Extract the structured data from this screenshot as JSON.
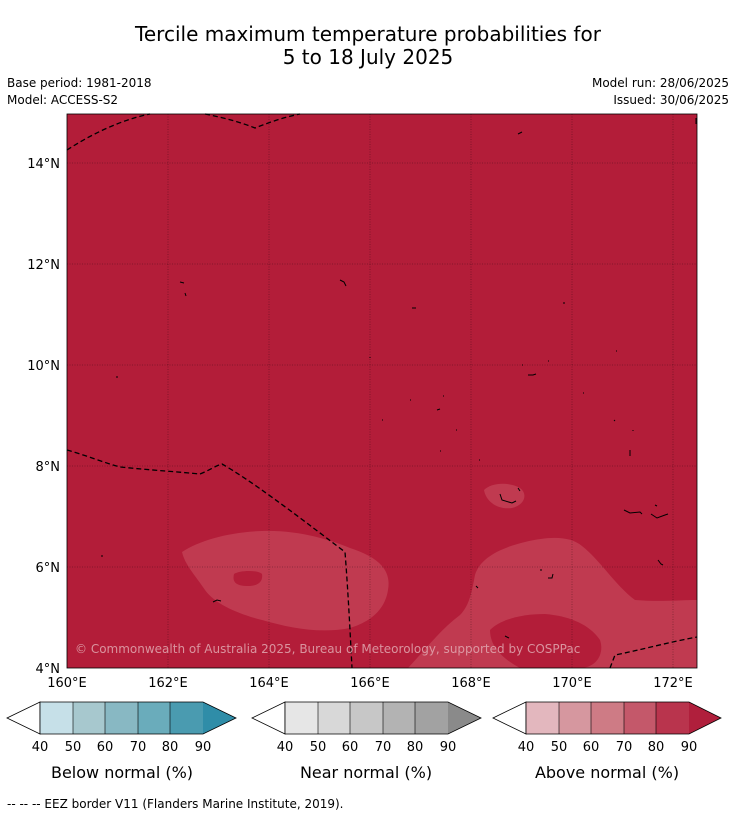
{
  "header": {
    "title_line1": "Tercile maximum temperature probabilities for",
    "title_line2": "5 to 18 July 2025",
    "base_period": "Base period: 1981-2018",
    "model": "Model: ACCESS-S2",
    "model_run": "Model run: 28/06/2025",
    "issued": "Issued: 30/06/2025"
  },
  "map": {
    "lat_labels": [
      "14°N",
      "12°N",
      "10°N",
      "8°N",
      "6°N",
      "4°N"
    ],
    "lon_labels": [
      "160°E",
      "162°E",
      "164°E",
      "166°E",
      "168°E",
      "170°E",
      "172°E"
    ],
    "copyright": "© Commonwealth of Australia 2025, Bureau of Meteorology, supported by COSPPac",
    "colors": {
      "above_90": "#b31d39",
      "above_80": "#c03a50"
    }
  },
  "colorbars": [
    {
      "label": "Below normal (%)",
      "ticks": [
        "40",
        "50",
        "60",
        "70",
        "80",
        "90"
      ],
      "colors": [
        "#c6e0e8",
        "#a7c8ce",
        "#88b8c3",
        "#6aacbb",
        "#4a9bb0",
        "#2f8da8"
      ]
    },
    {
      "label": "Near normal (%)",
      "ticks": [
        "40",
        "50",
        "60",
        "70",
        "80",
        "90"
      ],
      "colors": [
        "#e6e6e6",
        "#d8d8d8",
        "#c7c7c7",
        "#b3b3b3",
        "#a2a2a2",
        "#8a8a8a"
      ]
    },
    {
      "label": "Above normal (%)",
      "ticks": [
        "40",
        "50",
        "60",
        "70",
        "80",
        "90"
      ],
      "colors": [
        "#e3b7be",
        "#d6979f",
        "#ce7b85",
        "#c4586a",
        "#b9344d",
        "#b01f3c"
      ]
    }
  ],
  "footnote": "--  --  -- EEZ border V11 (Flanders Marine Institute, 2019)."
}
